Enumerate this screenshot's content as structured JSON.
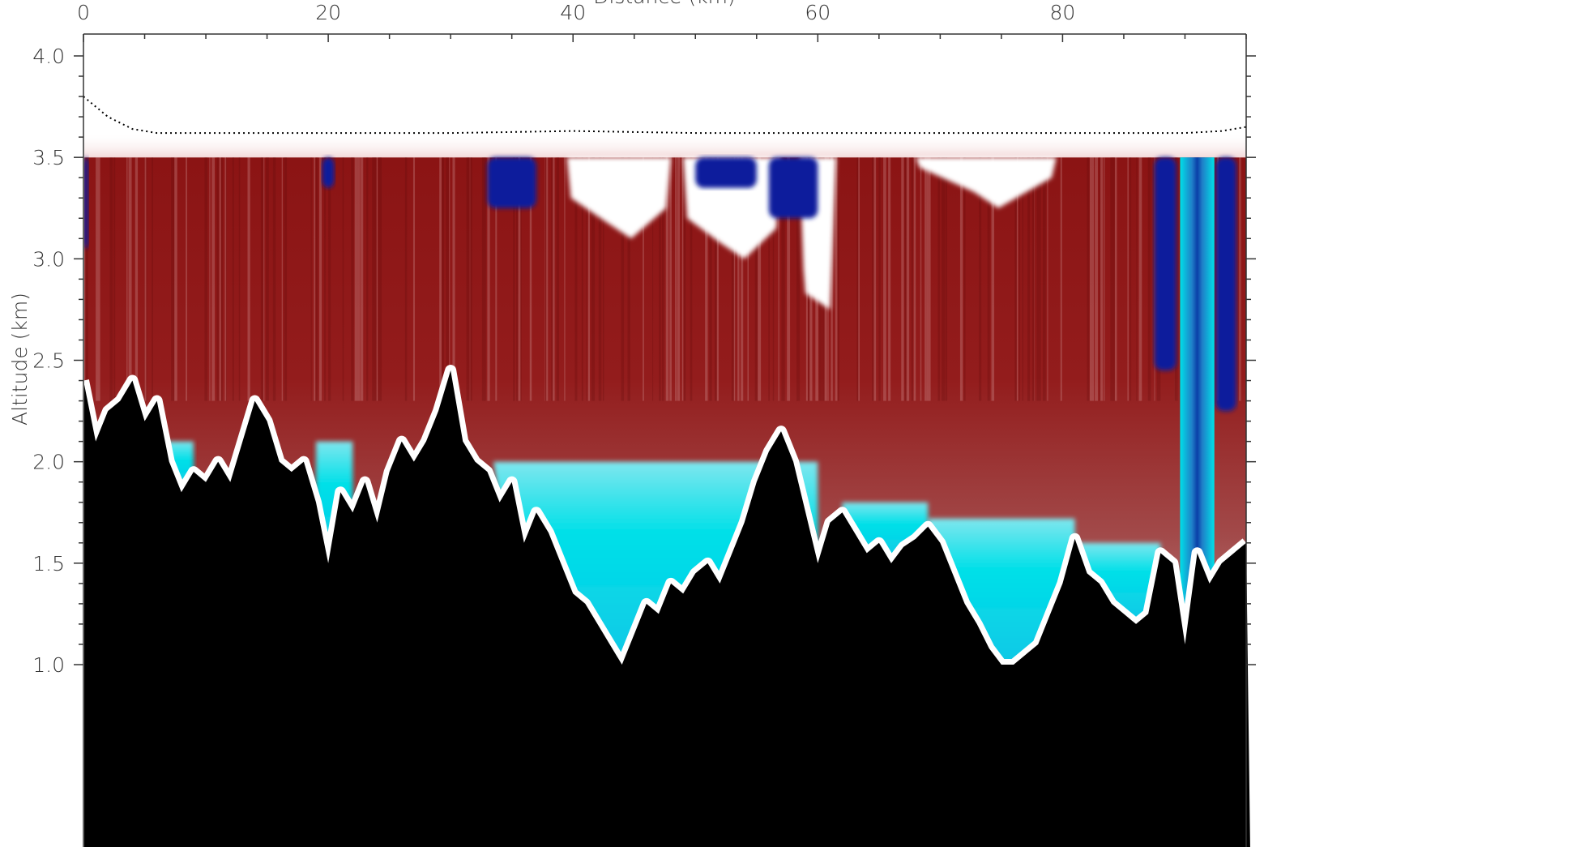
{
  "chart_data": {
    "type": "heatmap",
    "title": "",
    "top_axis_title": "Distance (km)",
    "ylabel": "Altitude (km)",
    "xlim": [
      0,
      95
    ],
    "ylim": [
      0.95,
      4.1
    ],
    "xticks": [
      0,
      20,
      40,
      60,
      80
    ],
    "xtick_labels": [
      "0",
      "20",
      "40",
      "60",
      "80"
    ],
    "yticks": [
      1.0,
      1.5,
      2.0,
      2.5,
      3.0,
      3.5,
      4.0
    ],
    "ytick_labels": [
      "1.0",
      "1.5",
      "2.0",
      "2.5",
      "3.0",
      "3.5",
      "4.0"
    ],
    "grid": false,
    "colors": {
      "dark_red": "#8b1414",
      "mid_red": "#b05a5a",
      "pink": "#e6c0c0",
      "cyan": "#00e0e8",
      "mid_blue": "#1f7fc8",
      "navy": "#0a1a9c",
      "terrain": "#000000",
      "flight_track": "#000000"
    },
    "data_top_km": 3.5,
    "flight_altitude": {
      "x": [
        0,
        2,
        4,
        6,
        10,
        20,
        30,
        40,
        50,
        60,
        70,
        80,
        90,
        93,
        95
      ],
      "y": [
        3.8,
        3.7,
        3.64,
        3.62,
        3.62,
        3.62,
        3.62,
        3.63,
        3.62,
        3.62,
        3.62,
        3.62,
        3.62,
        3.63,
        3.65
      ]
    },
    "terrain_height": {
      "x": [
        0,
        1,
        2,
        3,
        4,
        5,
        6,
        7,
        8,
        9,
        10,
        11,
        12,
        13,
        14,
        15,
        16,
        17,
        18,
        19,
        20,
        21,
        22,
        23,
        24,
        25,
        26,
        27,
        28,
        29,
        30,
        31,
        32,
        33,
        34,
        35,
        36,
        37,
        38,
        39,
        40,
        41,
        42,
        43,
        44,
        45,
        46,
        47,
        48,
        49,
        50,
        51,
        52,
        53,
        54,
        55,
        56,
        57,
        58,
        59,
        60,
        61,
        62,
        63,
        64,
        65,
        66,
        67,
        68,
        69,
        70,
        71,
        72,
        73,
        74,
        75,
        76,
        77,
        78,
        79,
        80,
        81,
        82,
        83,
        84,
        85,
        86,
        87,
        88,
        89,
        90,
        91,
        92,
        93,
        94,
        95
      ],
      "y": [
        2.4,
        2.1,
        2.25,
        2.3,
        2.4,
        2.2,
        2.3,
        2.0,
        1.85,
        1.95,
        1.9,
        2.0,
        1.9,
        2.1,
        2.3,
        2.2,
        2.0,
        1.95,
        2.0,
        1.8,
        1.5,
        1.85,
        1.75,
        1.9,
        1.7,
        1.95,
        2.1,
        2.0,
        2.1,
        2.25,
        2.45,
        2.1,
        2.0,
        1.95,
        1.8,
        1.9,
        1.6,
        1.75,
        1.65,
        1.5,
        1.35,
        1.3,
        1.2,
        1.1,
        1.0,
        1.15,
        1.3,
        1.25,
        1.4,
        1.35,
        1.45,
        1.5,
        1.4,
        1.55,
        1.7,
        1.9,
        2.05,
        2.15,
        2.0,
        1.75,
        1.5,
        1.7,
        1.75,
        1.65,
        1.55,
        1.6,
        1.5,
        1.58,
        1.62,
        1.68,
        1.6,
        1.45,
        1.3,
        1.2,
        1.08,
        1.0,
        1.0,
        1.05,
        1.1,
        1.25,
        1.4,
        1.62,
        1.45,
        1.4,
        1.3,
        1.25,
        1.2,
        1.25,
        1.55,
        1.5,
        1.1,
        1.55,
        1.4,
        1.5,
        1.55,
        1.6
      ]
    }
  }
}
